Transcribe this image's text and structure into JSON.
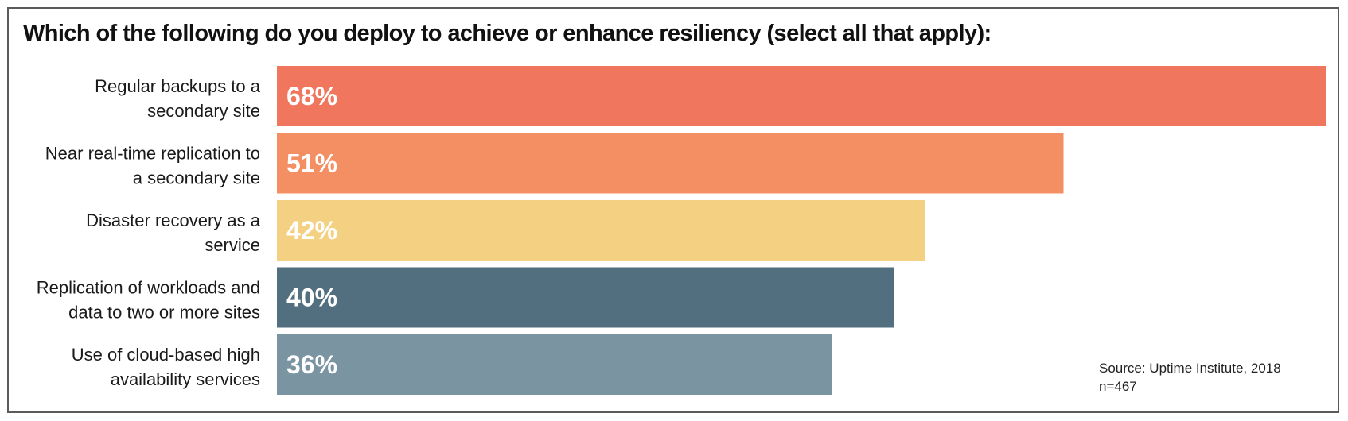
{
  "chart_data": {
    "type": "bar",
    "orientation": "horizontal",
    "title": "Which of the following do you deploy to achieve or enhance resiliency (select all that apply):",
    "categories": [
      [
        "Regular backups to a",
        "secondary site"
      ],
      [
        "Near real-time replication to",
        "a secondary site"
      ],
      [
        "Disaster recovery as a",
        "service"
      ],
      [
        "Replication of workloads and",
        "data to two or more sites"
      ],
      [
        "Use of cloud-based high",
        "availability services"
      ]
    ],
    "values": [
      68,
      51,
      42,
      40,
      36
    ],
    "value_labels": [
      "68%",
      "51%",
      "42%",
      "40%",
      "36%"
    ],
    "colors": [
      "#f0765d",
      "#f48f63",
      "#f4d082",
      "#516f7f",
      "#7b94a2"
    ],
    "xlim": [
      0,
      68
    ],
    "grid": false,
    "legend": "none"
  },
  "source": {
    "line1": "Source: Uptime Institute, 2018",
    "line2": "n=467"
  }
}
